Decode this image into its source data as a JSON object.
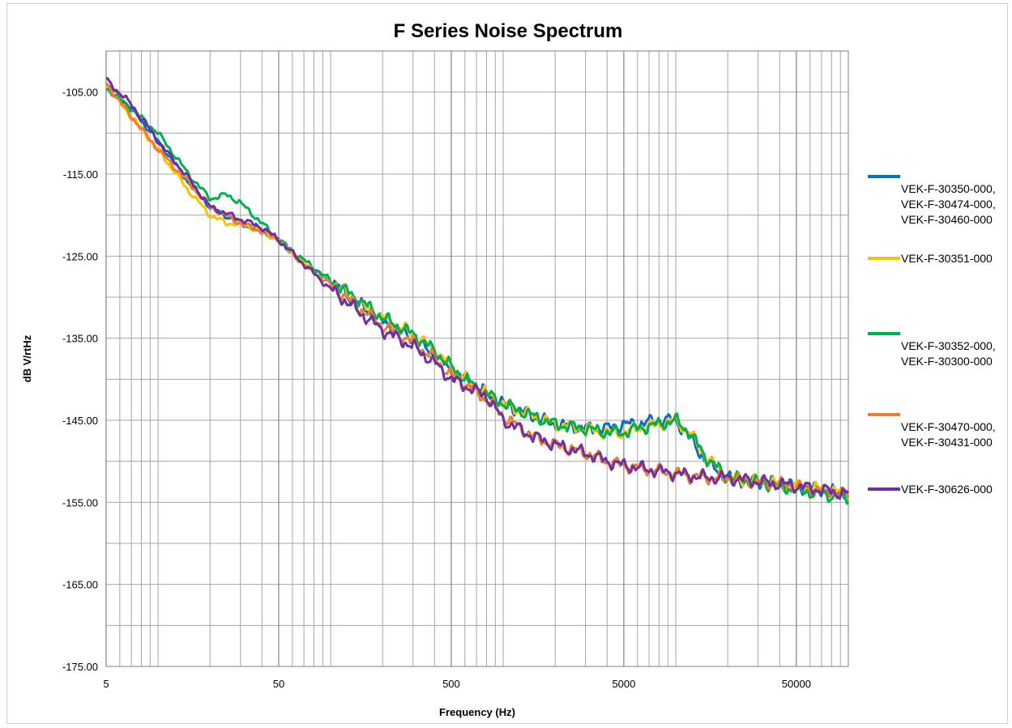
{
  "chart_data": {
    "type": "line",
    "title": "F Series Noise Spectrum",
    "xlabel": "Frequency (Hz)",
    "ylabel": "dB V/rtHz",
    "x_scale": "log",
    "xlim": [
      5,
      100000
    ],
    "ylim": [
      -175,
      -100
    ],
    "x_ticks": [
      5,
      50,
      500,
      5000,
      50000
    ],
    "x_tick_labels": [
      "5",
      "50",
      "500",
      "5000",
      "50000"
    ],
    "y_ticks": [
      -105,
      -115,
      -125,
      -135,
      -145,
      -155,
      -165,
      -175
    ],
    "y_tick_labels": [
      "-105.00",
      "-115.00",
      "-125.00",
      "-135.00",
      "-145.00",
      "-155.00",
      "-165.00",
      "-175.00"
    ],
    "grid": true,
    "legend_position": "right",
    "series": [
      {
        "name": "VEK-F-30350-000, VEK-F-30474-000, VEK-F-30460-000",
        "legend_lines": [
          "VEK-F-30350-000,",
          "VEK-F-30474-000,",
          "VEK-F-30460-000"
        ],
        "color": "#0070c0",
        "x": [
          5,
          7,
          10,
          15,
          20,
          30,
          40,
          50,
          70,
          100,
          150,
          200,
          300,
          400,
          500,
          700,
          1000,
          1500,
          2000,
          3000,
          4000,
          5000,
          6000,
          8000,
          10000,
          12000,
          15000,
          20000,
          30000,
          50000,
          70000,
          100000
        ],
        "y": [
          -104,
          -107,
          -111,
          -116,
          -119,
          -121,
          -122,
          -123,
          -126,
          -128,
          -131,
          -133,
          -135,
          -137,
          -139,
          -141,
          -143,
          -144.5,
          -145.5,
          -146,
          -146,
          -145.5,
          -145.5,
          -145,
          -145,
          -147,
          -150,
          -152,
          -152.5,
          -153,
          -153.5,
          -154
        ]
      },
      {
        "name": "VEK-F-30351-000",
        "legend_lines": [
          "VEK-F-30351-000"
        ],
        "color": "#ffc000",
        "x": [
          5,
          7,
          10,
          15,
          20,
          25,
          30,
          40,
          50,
          70,
          100,
          150,
          200,
          300,
          400,
          500,
          700,
          1000,
          1500,
          2000,
          3000,
          4000,
          5000,
          6000,
          8000,
          10000,
          12000,
          15000,
          20000,
          30000,
          50000,
          70000,
          100000
        ],
        "y": [
          -104,
          -108,
          -112,
          -117,
          -120,
          -121,
          -121,
          -122,
          -123,
          -126,
          -128,
          -131,
          -132.5,
          -134.5,
          -136.5,
          -138.5,
          -141,
          -143,
          -144.5,
          -145.5,
          -146,
          -146.5,
          -146.5,
          -146,
          -145.5,
          -145,
          -146.5,
          -149.5,
          -152,
          -152.5,
          -153,
          -153.5,
          -154
        ]
      },
      {
        "name": "VEK-F-30352-000, VEK-F-30300-000",
        "legend_lines": [
          "VEK-F-30352-000,",
          "VEK-F-30300-000"
        ],
        "color": "#00b050",
        "x": [
          5,
          7,
          10,
          15,
          20,
          25,
          30,
          40,
          50,
          70,
          100,
          150,
          200,
          300,
          400,
          500,
          700,
          1000,
          1500,
          2000,
          3000,
          4000,
          5000,
          6000,
          8000,
          10000,
          12000,
          15000,
          20000,
          30000,
          50000,
          70000,
          100000
        ],
        "y": [
          -104.5,
          -107,
          -110,
          -115,
          -118,
          -117.5,
          -118.5,
          -121,
          -123,
          -125.5,
          -128,
          -130.5,
          -132.5,
          -134.5,
          -136.5,
          -138.5,
          -141,
          -143,
          -144.5,
          -145.5,
          -146,
          -146.5,
          -146.5,
          -146,
          -145.5,
          -145,
          -146.5,
          -149.5,
          -152,
          -152.5,
          -153.5,
          -154,
          -154.5
        ]
      },
      {
        "name": "VEK-F-30470-000, VEK-F-30431-000",
        "legend_lines": [
          "VEK-F-30470-000,",
          "VEK-F-30431-000"
        ],
        "color": "#ed7d31",
        "x": [
          5,
          7,
          10,
          15,
          20,
          30,
          40,
          50,
          70,
          100,
          150,
          200,
          300,
          400,
          500,
          700,
          800,
          1000,
          1500,
          2000,
          3000,
          4000,
          5000,
          7000,
          10000,
          15000,
          20000,
          30000,
          50000,
          70000,
          100000
        ],
        "y": [
          -104,
          -108,
          -112,
          -116,
          -119,
          -121,
          -122,
          -123,
          -126,
          -128.5,
          -131.5,
          -133.5,
          -135.5,
          -137.5,
          -139.5,
          -141.5,
          -142.5,
          -144.5,
          -147,
          -148,
          -149,
          -150,
          -150.5,
          -151,
          -151.5,
          -152,
          -152,
          -152.5,
          -153,
          -153.5,
          -154
        ]
      },
      {
        "name": "VEK-F-30626-000",
        "legend_lines": [
          "VEK-F-30626-000"
        ],
        "color": "#7030a0",
        "x": [
          5,
          7,
          10,
          15,
          20,
          30,
          40,
          50,
          70,
          100,
          150,
          200,
          300,
          400,
          500,
          700,
          800,
          1000,
          1500,
          2000,
          3000,
          4000,
          5000,
          7000,
          10000,
          15000,
          20000,
          30000,
          50000,
          70000,
          100000
        ],
        "y": [
          -103.5,
          -106.5,
          -111,
          -115.5,
          -119,
          -120.5,
          -121.5,
          -123,
          -126,
          -129,
          -132,
          -134,
          -136,
          -138,
          -140,
          -141.5,
          -142,
          -145,
          -147,
          -148,
          -149,
          -150,
          -150.5,
          -151,
          -151.5,
          -152,
          -152,
          -152.5,
          -153,
          -153.5,
          -154
        ]
      }
    ]
  }
}
